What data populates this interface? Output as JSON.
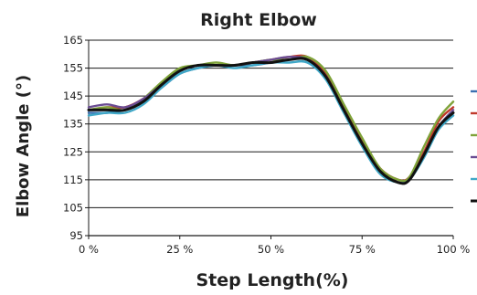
{
  "chart_data": {
    "type": "line",
    "title": "Right Elbow",
    "xlabel": "Step Length(%)",
    "ylabel": "Elbow Angle (°)",
    "ylim": [
      95,
      165
    ],
    "yticks": [
      95,
      105,
      115,
      125,
      135,
      145,
      155,
      165
    ],
    "xticks": [
      0,
      25,
      50,
      75,
      100
    ],
    "xtick_labels": [
      "0 %",
      "25 %",
      "50 %",
      "75 %",
      "100 %"
    ],
    "grid": "horizontal",
    "legend": "right (entries cut off at image edge)",
    "series": [
      {
        "color": "#3a6fb0",
        "x": [
          0,
          5,
          10,
          15,
          20,
          25,
          30,
          35,
          40,
          45,
          50,
          55,
          60,
          65,
          70,
          75,
          80,
          85,
          88,
          92,
          96,
          100
        ],
        "y": [
          139,
          139,
          140,
          143,
          148,
          153,
          155,
          156,
          156,
          156,
          157,
          158,
          158,
          152,
          140,
          128,
          118,
          114,
          116,
          124,
          134,
          139
        ]
      },
      {
        "color": "#c0392b",
        "x": [
          0,
          5,
          10,
          15,
          20,
          25,
          30,
          35,
          40,
          45,
          50,
          55,
          60,
          65,
          70,
          75,
          80,
          85,
          88,
          92,
          96,
          100
        ],
        "y": [
          140,
          141,
          141,
          144,
          149,
          154,
          156,
          156,
          156,
          157,
          158,
          159,
          159,
          153,
          141,
          129,
          119,
          115,
          116,
          125,
          136,
          141
        ]
      },
      {
        "color": "#7fa33a",
        "x": [
          0,
          5,
          10,
          15,
          20,
          25,
          30,
          35,
          40,
          45,
          50,
          55,
          60,
          65,
          70,
          75,
          80,
          85,
          88,
          92,
          96,
          100
        ],
        "y": [
          140,
          141,
          140,
          144,
          150,
          155,
          156,
          157,
          156,
          157,
          158,
          158,
          159,
          154,
          142,
          130,
          119,
          115,
          116,
          127,
          137,
          143
        ]
      },
      {
        "color": "#6a4c93",
        "x": [
          0,
          5,
          10,
          15,
          20,
          25,
          30,
          35,
          40,
          45,
          50,
          55,
          60,
          65,
          70,
          75,
          80,
          85,
          88,
          92,
          96,
          100
        ],
        "y": [
          141,
          142,
          141,
          144,
          149,
          154,
          156,
          156,
          156,
          157,
          158,
          159,
          158,
          152,
          140,
          128,
          118,
          114,
          115,
          124,
          134,
          140
        ]
      },
      {
        "color": "#3fa7c7",
        "x": [
          0,
          5,
          10,
          15,
          20,
          25,
          30,
          35,
          40,
          45,
          50,
          55,
          60,
          65,
          70,
          75,
          80,
          85,
          88,
          92,
          96,
          100
        ],
        "y": [
          138,
          139,
          139,
          142,
          148,
          153,
          155,
          156,
          155,
          156,
          157,
          157,
          157,
          151,
          139,
          127,
          117,
          114,
          115,
          123,
          133,
          138
        ]
      },
      {
        "color": "#111111",
        "x": [
          0,
          5,
          10,
          15,
          20,
          25,
          30,
          35,
          40,
          45,
          50,
          55,
          60,
          65,
          70,
          75,
          80,
          85,
          88,
          92,
          96,
          100
        ],
        "y": [
          140,
          140,
          140,
          143,
          149,
          154,
          156,
          156,
          156,
          157,
          157,
          158,
          158,
          152,
          140,
          128,
          118,
          114,
          115,
          124,
          134,
          139
        ]
      }
    ]
  }
}
